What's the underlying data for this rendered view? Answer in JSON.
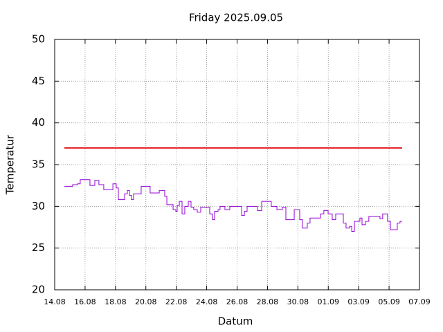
{
  "chart_data": {
    "type": "line",
    "title": "Friday 2025.09.05",
    "xlabel": "Datum",
    "ylabel": "Temperatur",
    "xlim": [
      0,
      24
    ],
    "xticks": [
      {
        "value": 0,
        "label": "14.08"
      },
      {
        "value": 2,
        "label": "16.08"
      },
      {
        "value": 4,
        "label": "18.08"
      },
      {
        "value": 6,
        "label": "20.08"
      },
      {
        "value": 8,
        "label": "22.08"
      },
      {
        "value": 10,
        "label": "24.08"
      },
      {
        "value": 12,
        "label": "26.08"
      },
      {
        "value": 14,
        "label": "28.08"
      },
      {
        "value": 16,
        "label": "30.08"
      },
      {
        "value": 18,
        "label": "01.09"
      },
      {
        "value": 20,
        "label": "03.09"
      },
      {
        "value": 22,
        "label": "05.09"
      },
      {
        "value": 24,
        "label": "07.09"
      }
    ],
    "ylim": [
      20,
      50
    ],
    "yticks": [
      20,
      25,
      30,
      35,
      40,
      45,
      50
    ],
    "grid": true,
    "series": [
      {
        "color": "#e41a1c",
        "x": [
          0.64,
          22.86
        ],
        "values": [
          37,
          37
        ]
      },
      {
        "color": "#9400d3",
        "x": [
          0.64,
          1.18,
          1.5,
          1.68,
          2.19,
          2.32,
          2.64,
          2.91,
          3.23,
          3.69,
          3.83,
          4.05,
          4.19,
          4.37,
          4.6,
          4.78,
          4.92,
          5.05,
          5.19,
          5.51,
          5.69,
          6.15,
          6.28,
          6.69,
          6.88,
          7.1,
          7.24,
          7.38,
          7.65,
          7.79,
          7.97,
          8.06,
          8.2,
          8.38,
          8.56,
          8.79,
          8.97,
          9.15,
          9.38,
          9.61,
          10.06,
          10.2,
          10.38,
          10.52,
          10.75,
          10.88,
          11.2,
          11.52,
          12.11,
          12.3,
          12.48,
          12.66,
          13.16,
          13.34,
          13.62,
          14.07,
          14.25,
          14.62,
          14.98,
          15.21,
          15.53,
          15.76,
          15.98,
          16.12,
          16.3,
          16.48,
          16.62,
          16.8,
          17.26,
          17.49,
          17.71,
          17.99,
          18.26,
          18.49,
          18.81,
          18.99,
          19.17,
          19.4,
          19.54,
          19.72,
          20.08,
          20.22,
          20.45,
          20.67,
          21.22,
          21.4,
          21.58,
          21.77,
          21.9,
          22.09,
          22.4,
          22.54,
          22.72,
          22.86
        ],
        "values": [
          32.4,
          32.6,
          32.7,
          33.2,
          33.2,
          32.5,
          33.1,
          32.6,
          32.0,
          32.0,
          32.7,
          32.2,
          30.8,
          30.8,
          31.5,
          31.9,
          31.3,
          30.8,
          31.5,
          31.5,
          32.4,
          32.4,
          31.6,
          31.6,
          31.9,
          31.9,
          31.2,
          30.2,
          30.2,
          29.6,
          29.4,
          30.1,
          30.6,
          29.1,
          30.0,
          30.6,
          29.9,
          29.6,
          29.3,
          29.9,
          29.9,
          29.1,
          28.4,
          29.4,
          29.6,
          30.0,
          29.6,
          30.0,
          30.0,
          28.9,
          29.4,
          30.0,
          30.0,
          29.5,
          30.6,
          30.6,
          30.0,
          29.6,
          29.9,
          28.4,
          28.4,
          29.6,
          29.6,
          28.4,
          27.4,
          27.4,
          28.0,
          28.6,
          28.6,
          29.1,
          29.5,
          29.1,
          28.4,
          29.1,
          29.1,
          28.0,
          27.4,
          27.6,
          27.0,
          28.2,
          28.6,
          27.8,
          28.2,
          28.8,
          28.8,
          28.5,
          29.1,
          29.1,
          28.2,
          27.2,
          27.2,
          28.0,
          28.2,
          28.2
        ]
      }
    ]
  }
}
